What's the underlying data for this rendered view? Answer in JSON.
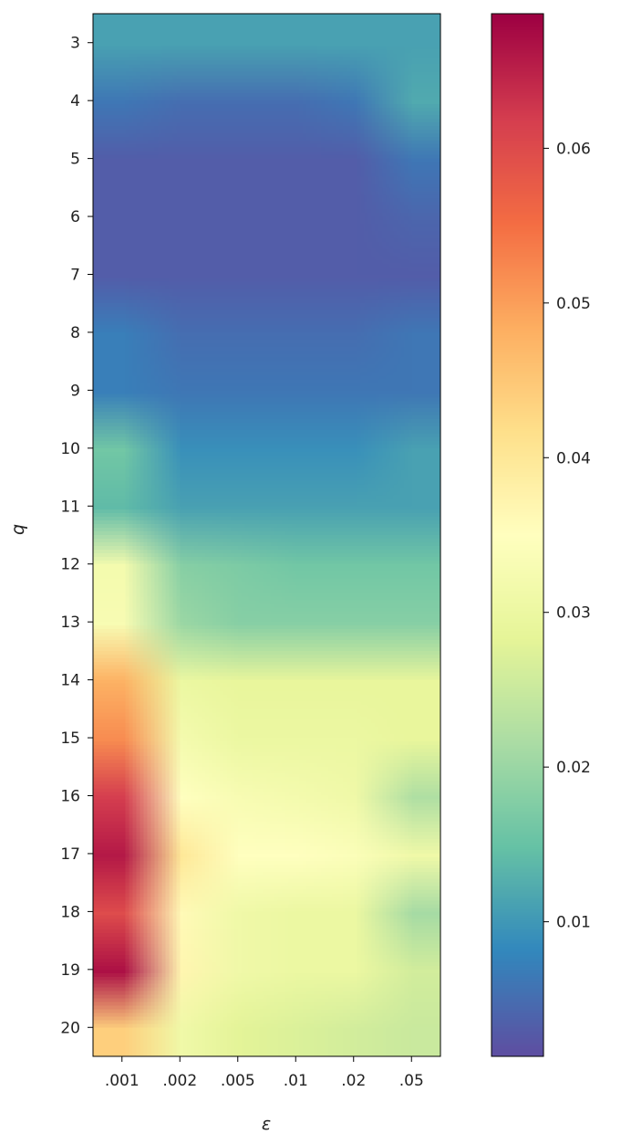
{
  "chart_data": {
    "type": "heatmap",
    "xlabel": "ε",
    "ylabel": "q",
    "x_categories": [
      ".001",
      ".002",
      ".005",
      ".01",
      ".02",
      ".05"
    ],
    "y_categories": [
      "3",
      "4",
      "5",
      "6",
      "7",
      "8",
      "9",
      "10",
      "11",
      "12",
      "13",
      "14",
      "15",
      "16",
      "17",
      "18",
      "19",
      "20"
    ],
    "values": [
      [
        0.011,
        0.011,
        0.011,
        0.011,
        0.011,
        0.011
      ],
      [
        0.006,
        0.005,
        0.005,
        0.005,
        0.006,
        0.012
      ],
      [
        0.003,
        0.003,
        0.003,
        0.003,
        0.003,
        0.006
      ],
      [
        0.003,
        0.003,
        0.003,
        0.003,
        0.003,
        0.004
      ],
      [
        0.003,
        0.003,
        0.003,
        0.003,
        0.003,
        0.003
      ],
      [
        0.007,
        0.005,
        0.005,
        0.005,
        0.005,
        0.006
      ],
      [
        0.007,
        0.006,
        0.006,
        0.006,
        0.006,
        0.006
      ],
      [
        0.016,
        0.009,
        0.009,
        0.009,
        0.009,
        0.011
      ],
      [
        0.014,
        0.011,
        0.011,
        0.011,
        0.011,
        0.011
      ],
      [
        0.032,
        0.018,
        0.017,
        0.016,
        0.016,
        0.016
      ],
      [
        0.033,
        0.02,
        0.018,
        0.018,
        0.018,
        0.018
      ],
      [
        0.048,
        0.03,
        0.029,
        0.029,
        0.029,
        0.029
      ],
      [
        0.052,
        0.032,
        0.03,
        0.03,
        0.03,
        0.029
      ],
      [
        0.062,
        0.035,
        0.033,
        0.032,
        0.031,
        0.022
      ],
      [
        0.066,
        0.04,
        0.035,
        0.035,
        0.034,
        0.031
      ],
      [
        0.06,
        0.036,
        0.031,
        0.03,
        0.03,
        0.021
      ],
      [
        0.067,
        0.037,
        0.031,
        0.03,
        0.03,
        0.026
      ],
      [
        0.044,
        0.031,
        0.028,
        0.027,
        0.026,
        0.025
      ]
    ],
    "colormap": "Spectral_r",
    "color_range": [
      0.0013,
      0.0687
    ],
    "colorbar_ticks": [
      "0.01",
      "0.02",
      "0.03",
      "0.04",
      "0.05",
      "0.06"
    ],
    "colorbar_tick_values": [
      0.01,
      0.02,
      0.03,
      0.04,
      0.05,
      0.06
    ],
    "colormap_stops": [
      "#5e4fa2",
      "#3288bd",
      "#66c2a5",
      "#abdda4",
      "#e6f598",
      "#ffffbf",
      "#fee08b",
      "#fdae61",
      "#f46d43",
      "#d53e4f",
      "#9e0142"
    ],
    "interpolation": "smooth",
    "grid": false
  }
}
